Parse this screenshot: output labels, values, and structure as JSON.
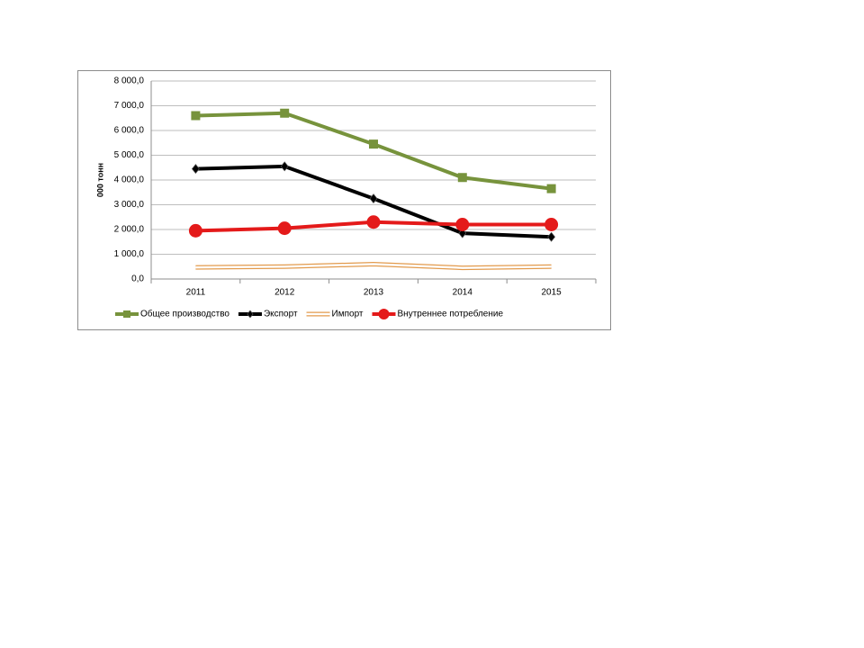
{
  "chart_data": {
    "type": "line",
    "y_label": "000 тонн",
    "categories": [
      "2011",
      "2012",
      "2013",
      "2014",
      "2015"
    ],
    "series": [
      {
        "name": "Общее производство",
        "color": "#77933c",
        "marker": "square",
        "values": [
          6600,
          6700,
          5450,
          4100,
          3650
        ]
      },
      {
        "name": "Экспорт",
        "color": "#000000",
        "marker": "diamond",
        "values": [
          4450,
          4550,
          3250,
          1850,
          1700
        ]
      },
      {
        "name": "Импорт",
        "color": "#e29a4c",
        "style": "hollow",
        "values": [
          470,
          500,
          600,
          450,
          500
        ]
      },
      {
        "name": "Внутреннее потребление",
        "color": "#e41a1a",
        "marker": "circle",
        "values": [
          1950,
          2050,
          2300,
          2200,
          2200
        ]
      }
    ],
    "ylim": [
      0,
      8000
    ],
    "yticks": [
      {
        "value": 0,
        "label": "0,0"
      },
      {
        "value": 1000,
        "label": "1 000,0"
      },
      {
        "value": 2000,
        "label": "2 000,0"
      },
      {
        "value": 3000,
        "label": "3 000,0"
      },
      {
        "value": 4000,
        "label": "4 000,0"
      },
      {
        "value": 5000,
        "label": "5 000,0"
      },
      {
        "value": 6000,
        "label": "6 000,0"
      },
      {
        "value": 7000,
        "label": "7 000,0"
      },
      {
        "value": 8000,
        "label": "8 000,0"
      }
    ],
    "grid": true,
    "legend": "bottom"
  }
}
